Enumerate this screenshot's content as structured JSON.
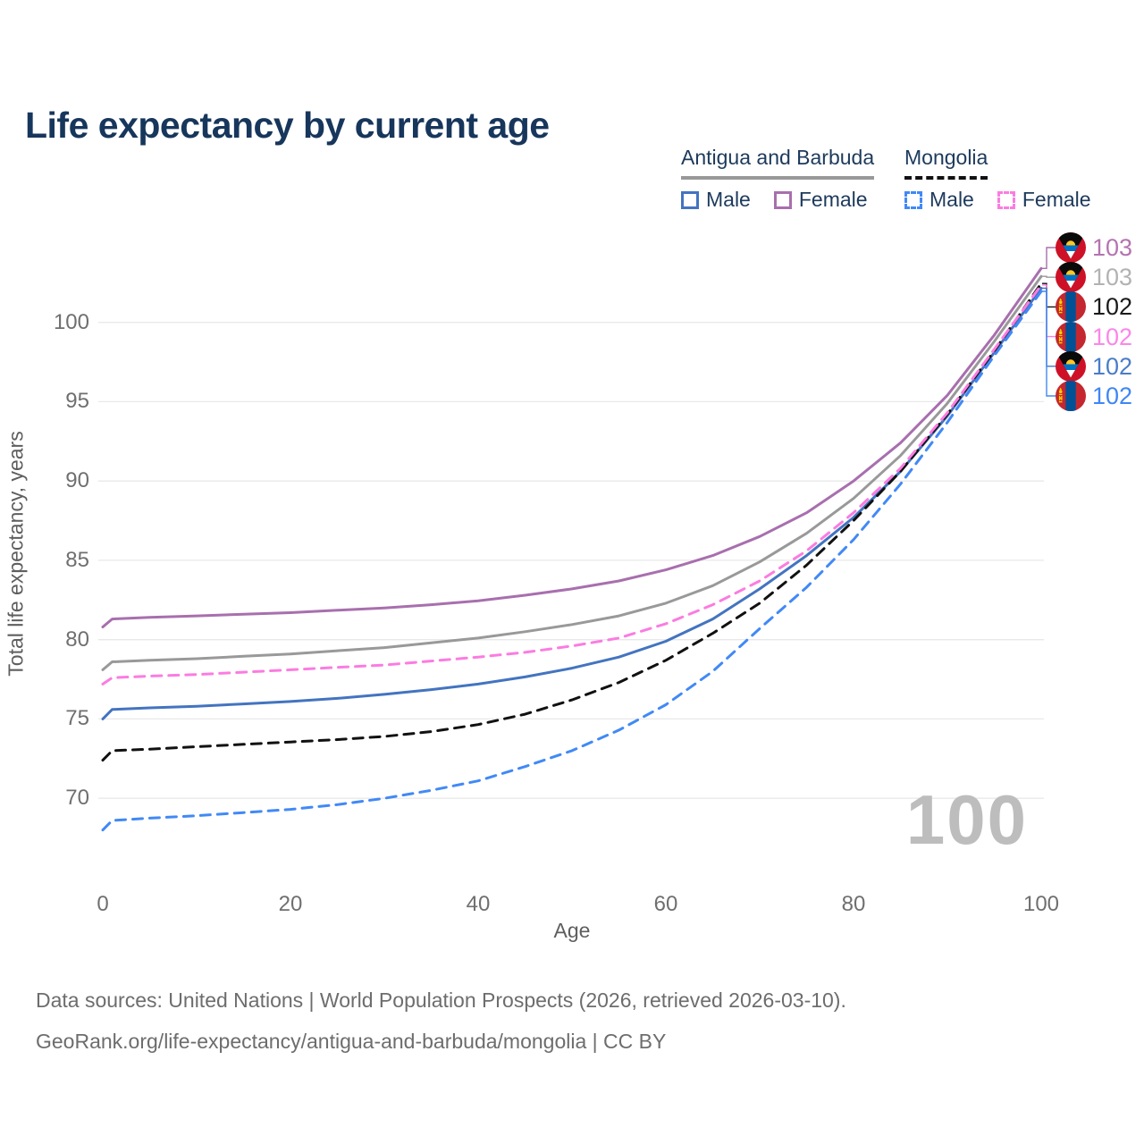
{
  "title": "Life expectancy by current age",
  "watermark": "100",
  "legend": {
    "groups": [
      {
        "label": "Antigua and Barbuda",
        "line_style": "solid",
        "line_color": "#999999",
        "items": [
          {
            "label": "Male",
            "color": "#4374c0",
            "dashed": false
          },
          {
            "label": "Female",
            "color": "#a86fae",
            "dashed": false
          }
        ]
      },
      {
        "label": "Mongolia",
        "line_style": "dashed",
        "line_color": "#111111",
        "items": [
          {
            "label": "Male",
            "color": "#4189f6",
            "dashed": true
          },
          {
            "label": "Female",
            "color": "#fb7ce1",
            "dashed": true
          }
        ]
      }
    ]
  },
  "footer": {
    "line1": "Data sources: United Nations | World Population Prospects (2026, retrieved 2026-03-10).",
    "line2": "GeoRank.org/life-expectancy/antigua-and-barbuda/mongolia | CC BY"
  },
  "chart_data": {
    "type": "line",
    "title": "Life expectancy by current age",
    "xlabel": "Age",
    "ylabel": "Total life expectancy, years",
    "xlim": [
      0,
      100
    ],
    "ylim": [
      66.8,
      104.6
    ],
    "xticks": [
      0,
      20,
      40,
      60,
      80,
      100
    ],
    "yticks": [
      70,
      75,
      80,
      85,
      90,
      95,
      100
    ],
    "grid": "horizontal",
    "legend_position": "top-right",
    "x": [
      0,
      1,
      5,
      10,
      15,
      20,
      25,
      30,
      35,
      40,
      45,
      50,
      55,
      60,
      65,
      70,
      75,
      80,
      85,
      90,
      95,
      100
    ],
    "series": [
      {
        "country": "Antigua and Barbuda",
        "sex": "Female",
        "name": "Antigua and Barbuda — Female",
        "color": "#a86fae",
        "dash": "solid",
        "flag": "antigua-and-barbuda",
        "end_label": "103",
        "end_label_color": "#b573b0",
        "values": [
          80.8,
          81.3,
          81.4,
          81.5,
          81.6,
          81.7,
          81.85,
          82.0,
          82.2,
          82.45,
          82.8,
          83.2,
          83.7,
          84.4,
          85.3,
          86.5,
          88.0,
          90.0,
          92.4,
          95.4,
          99.2,
          103.4
        ]
      },
      {
        "country": "Antigua and Barbuda",
        "sex": "Both sexes",
        "name": "Antigua and Barbuda — Both sexes",
        "color": "#999999",
        "dash": "solid",
        "flag": "antigua-and-barbuda",
        "end_label": "103",
        "end_label_color": "#b2b2b2",
        "values": [
          78.1,
          78.6,
          78.7,
          78.8,
          78.95,
          79.1,
          79.3,
          79.5,
          79.8,
          80.1,
          80.5,
          80.95,
          81.5,
          82.3,
          83.4,
          84.9,
          86.7,
          88.9,
          91.6,
          94.9,
          98.8,
          102.9
        ]
      },
      {
        "country": "Mongolia",
        "sex": "Both sexes",
        "name": "Mongolia — Both sexes",
        "color": "#111111",
        "dash": "dashed",
        "flag": "mongolia",
        "end_label": "102",
        "end_label_color": "#1a1a1a",
        "values": [
          72.4,
          73.0,
          73.1,
          73.25,
          73.4,
          73.55,
          73.7,
          73.9,
          74.2,
          74.65,
          75.3,
          76.2,
          77.3,
          78.7,
          80.4,
          82.3,
          84.7,
          87.5,
          90.6,
          94.2,
          98.2,
          102.45
        ]
      },
      {
        "country": "Mongolia",
        "sex": "Female",
        "name": "Mongolia — Female",
        "color": "#fb7ce1",
        "dash": "dashed",
        "flag": "mongolia",
        "end_label": "102",
        "end_label_color": "#fb86e8",
        "values": [
          77.2,
          77.6,
          77.7,
          77.8,
          77.95,
          78.1,
          78.25,
          78.4,
          78.65,
          78.9,
          79.2,
          79.6,
          80.1,
          81.0,
          82.2,
          83.7,
          85.6,
          88.0,
          90.8,
          94.3,
          98.3,
          102.35
        ]
      },
      {
        "country": "Antigua and Barbuda",
        "sex": "Male",
        "name": "Antigua and Barbuda — Male",
        "color": "#4374c0",
        "dash": "solid",
        "flag": "antigua-and-barbuda",
        "end_label": "102",
        "end_label_color": "#4a7cc9",
        "values": [
          75.0,
          75.6,
          75.7,
          75.8,
          75.95,
          76.1,
          76.3,
          76.55,
          76.85,
          77.2,
          77.65,
          78.2,
          78.9,
          79.9,
          81.3,
          83.2,
          85.3,
          87.7,
          90.6,
          94.1,
          98.1,
          102.15
        ]
      },
      {
        "country": "Mongolia",
        "sex": "Male",
        "name": "Mongolia — Male",
        "color": "#4189f6",
        "dash": "dashed",
        "flag": "mongolia",
        "end_label": "102",
        "end_label_color": "#3f86f5",
        "values": [
          68.0,
          68.6,
          68.75,
          68.9,
          69.1,
          69.3,
          69.6,
          70.0,
          70.5,
          71.1,
          72.0,
          73.0,
          74.3,
          75.9,
          78.0,
          80.7,
          83.3,
          86.3,
          89.8,
          93.7,
          97.9,
          101.95
        ]
      }
    ]
  }
}
